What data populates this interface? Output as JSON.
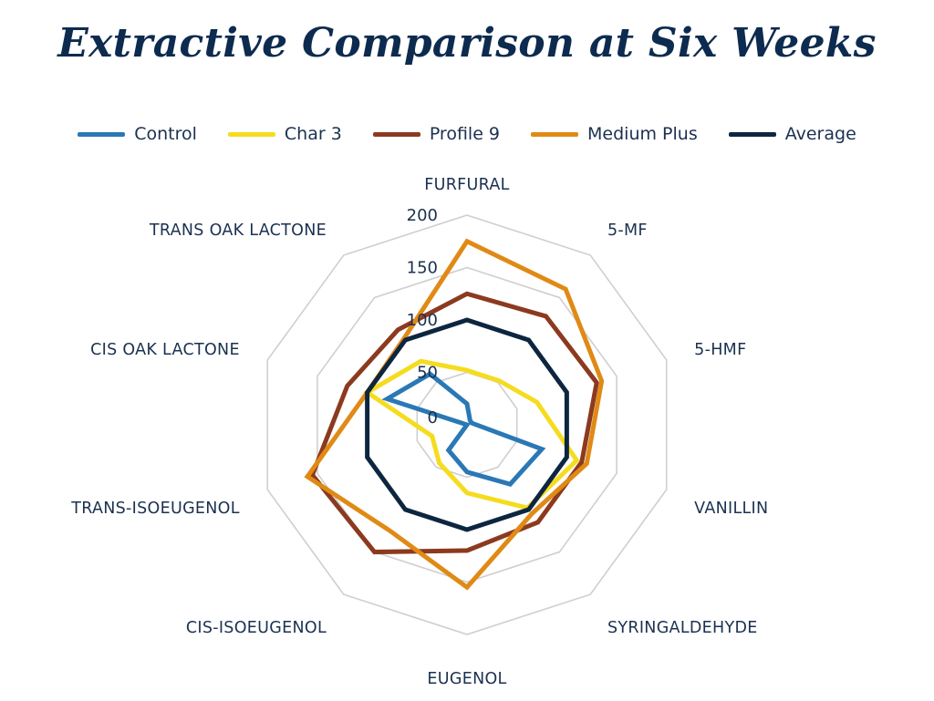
{
  "chart_data": {
    "type": "radar",
    "title": "Extractive Comparison at Six Weeks",
    "axes": [
      "FURFURAL",
      "5-MF",
      "5-HMF",
      "VANILLIN",
      "SYRINGALDEHYDE",
      "EUGENOL",
      "CIS-ISOEUGENOL",
      "TRANS-ISOEUGENOL",
      "CIS OAK LACTONE",
      "TRANS OAK LACTONE"
    ],
    "ticks": [
      "0",
      "50",
      "100",
      "150",
      "200"
    ],
    "rlim": [
      0,
      200
    ],
    "grid": true,
    "legend_position": "top",
    "series": [
      {
        "name": "Control",
        "color": "#2a78b5",
        "values": [
          20,
          5,
          5,
          75,
          70,
          45,
          30,
          0,
          80,
          60
        ]
      },
      {
        "name": "Char 3",
        "color": "#f5dc1e",
        "values": [
          52,
          52,
          70,
          110,
          98,
          65,
          45,
          35,
          100,
          75
        ]
      },
      {
        "name": "Profile 9",
        "color": "#8c3a1f",
        "values": [
          125,
          128,
          130,
          115,
          115,
          120,
          150,
          155,
          120,
          112
        ]
      },
      {
        "name": "Medium Plus",
        "color": "#e08a16",
        "values": [
          175,
          160,
          135,
          120,
          105,
          155,
          125,
          160,
          100,
          102
        ]
      },
      {
        "name": "Average",
        "color": "#0d2640",
        "values": [
          100,
          100,
          100,
          100,
          100,
          100,
          100,
          100,
          100,
          100
        ]
      }
    ]
  }
}
